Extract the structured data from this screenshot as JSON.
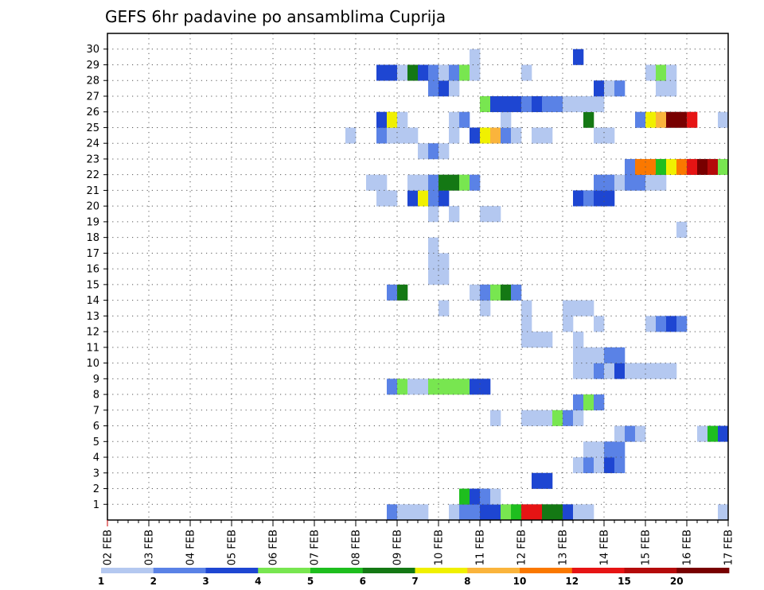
{
  "chart_data": {
    "type": "heatmap",
    "title": "GEFS 6hr padavine po ansamblima Cuprija",
    "xlabel": "",
    "ylabel": "",
    "x_ticks": [
      "02 FEB",
      "03 FEB",
      "04 FEB",
      "05 FEB",
      "06 FEB",
      "07 FEB",
      "08 FEB",
      "09 FEB",
      "10 FEB",
      "11 FEB",
      "12 FEB",
      "13 FEB",
      "14 FEB",
      "15 FEB",
      "16 FEB",
      "17 FEB"
    ],
    "y_ticks": [
      "1",
      "2",
      "3",
      "4",
      "5",
      "6",
      "7",
      "8",
      "9",
      "10",
      "11",
      "12",
      "13",
      "14",
      "15",
      "16",
      "17",
      "18",
      "19",
      "20",
      "21",
      "22",
      "23",
      "24",
      "25",
      "26",
      "27",
      "28",
      "29",
      "30"
    ],
    "xlim_days": [
      0,
      15
    ],
    "time_step_hours": 6,
    "members": 31,
    "grid": "dotted",
    "legend": {
      "placement": "bottom",
      "labels": [
        "1",
        "2",
        "3",
        "4",
        "5",
        "6",
        "7",
        "8",
        "10",
        "12",
        "15",
        "20"
      ],
      "colors": [
        "#b4c8f0",
        "#5a82e6",
        "#1e46d2",
        "#78e650",
        "#1ebe1e",
        "#147814",
        "#f0f000",
        "#fab43c",
        "#fa7800",
        "#e61414",
        "#b40a0a",
        "#780000"
      ]
    },
    "cells": [
      [
        0,
        27,
        2
      ],
      [
        0,
        28,
        1
      ],
      [
        0,
        29,
        1
      ],
      [
        0,
        30,
        1
      ],
      [
        0,
        33,
        1
      ],
      [
        0,
        34,
        2
      ],
      [
        0,
        35,
        2
      ],
      [
        0,
        36,
        3
      ],
      [
        0,
        37,
        3
      ],
      [
        0,
        38,
        4
      ],
      [
        0,
        39,
        5
      ],
      [
        0,
        40,
        10
      ],
      [
        0,
        41,
        10
      ],
      [
        0,
        42,
        6
      ],
      [
        0,
        43,
        6
      ],
      [
        0,
        44,
        3
      ],
      [
        0,
        45,
        1
      ],
      [
        0,
        46,
        1
      ],
      [
        0,
        59,
        1
      ],
      [
        1,
        34,
        5
      ],
      [
        1,
        35,
        3
      ],
      [
        1,
        36,
        2
      ],
      [
        1,
        37,
        1
      ],
      [
        2,
        41,
        3
      ],
      [
        2,
        42,
        3
      ],
      [
        3,
        45,
        1
      ],
      [
        3,
        46,
        2
      ],
      [
        3,
        47,
        1
      ],
      [
        3,
        48,
        3
      ],
      [
        3,
        49,
        2
      ],
      [
        4,
        46,
        1
      ],
      [
        4,
        47,
        1
      ],
      [
        4,
        48,
        2
      ],
      [
        4,
        49,
        2
      ],
      [
        5,
        49,
        1
      ],
      [
        5,
        50,
        2
      ],
      [
        5,
        51,
        1
      ],
      [
        5,
        57,
        1
      ],
      [
        5,
        58,
        5
      ],
      [
        5,
        59,
        3
      ],
      [
        6,
        37,
        1
      ],
      [
        6,
        40,
        1
      ],
      [
        6,
        41,
        1
      ],
      [
        6,
        42,
        1
      ],
      [
        6,
        43,
        4
      ],
      [
        6,
        44,
        2
      ],
      [
        6,
        45,
        1
      ],
      [
        7,
        45,
        2
      ],
      [
        7,
        46,
        4
      ],
      [
        7,
        47,
        2
      ],
      [
        8,
        27,
        2
      ],
      [
        8,
        28,
        4
      ],
      [
        8,
        29,
        1
      ],
      [
        8,
        30,
        1
      ],
      [
        8,
        31,
        4
      ],
      [
        8,
        32,
        4
      ],
      [
        8,
        33,
        4
      ],
      [
        8,
        34,
        4
      ],
      [
        8,
        35,
        3
      ],
      [
        8,
        36,
        3
      ],
      [
        9,
        45,
        1
      ],
      [
        9,
        46,
        1
      ],
      [
        9,
        47,
        2
      ],
      [
        9,
        48,
        1
      ],
      [
        9,
        49,
        3
      ],
      [
        9,
        50,
        1
      ],
      [
        9,
        51,
        1
      ],
      [
        9,
        52,
        1
      ],
      [
        9,
        53,
        1
      ],
      [
        9,
        54,
        1
      ],
      [
        10,
        45,
        1
      ],
      [
        10,
        46,
        1
      ],
      [
        10,
        47,
        1
      ],
      [
        10,
        48,
        2
      ],
      [
        10,
        49,
        2
      ],
      [
        11,
        40,
        1
      ],
      [
        11,
        41,
        1
      ],
      [
        11,
        42,
        1
      ],
      [
        11,
        45,
        1
      ],
      [
        12,
        40,
        1
      ],
      [
        12,
        44,
        1
      ],
      [
        12,
        47,
        1
      ],
      [
        12,
        52,
        1
      ],
      [
        12,
        53,
        2
      ],
      [
        12,
        54,
        3
      ],
      [
        12,
        55,
        2
      ],
      [
        13,
        32,
        1
      ],
      [
        13,
        36,
        1
      ],
      [
        13,
        40,
        1
      ],
      [
        13,
        44,
        1
      ],
      [
        13,
        45,
        1
      ],
      [
        13,
        46,
        1
      ],
      [
        14,
        27,
        2
      ],
      [
        14,
        28,
        6
      ],
      [
        14,
        35,
        1
      ],
      [
        14,
        36,
        2
      ],
      [
        14,
        37,
        4
      ],
      [
        14,
        38,
        6
      ],
      [
        14,
        39,
        2
      ],
      [
        15,
        31,
        1
      ],
      [
        15,
        32,
        1
      ],
      [
        16,
        32,
        1
      ],
      [
        16,
        31,
        1
      ],
      [
        17,
        31,
        1
      ],
      [
        18,
        55,
        1
      ],
      [
        19,
        31,
        1
      ],
      [
        19,
        33,
        1
      ],
      [
        19,
        36,
        1
      ],
      [
        19,
        37,
        1
      ],
      [
        20,
        26,
        1
      ],
      [
        20,
        27,
        1
      ],
      [
        20,
        29,
        3
      ],
      [
        20,
        30,
        7
      ],
      [
        20,
        31,
        2
      ],
      [
        20,
        32,
        3
      ],
      [
        20,
        45,
        3
      ],
      [
        20,
        46,
        2
      ],
      [
        20,
        47,
        3
      ],
      [
        20,
        48,
        3
      ],
      [
        21,
        25,
        1
      ],
      [
        21,
        26,
        1
      ],
      [
        21,
        29,
        1
      ],
      [
        21,
        30,
        1
      ],
      [
        21,
        31,
        2
      ],
      [
        21,
        32,
        6
      ],
      [
        21,
        33,
        6
      ],
      [
        21,
        34,
        4
      ],
      [
        21,
        35,
        2
      ],
      [
        21,
        47,
        2
      ],
      [
        21,
        48,
        2
      ],
      [
        21,
        49,
        1
      ],
      [
        21,
        50,
        2
      ],
      [
        21,
        51,
        2
      ],
      [
        21,
        52,
        1
      ],
      [
        21,
        53,
        1
      ],
      [
        22,
        50,
        2
      ],
      [
        22,
        51,
        9
      ],
      [
        22,
        52,
        9
      ],
      [
        22,
        53,
        5
      ],
      [
        22,
        54,
        7
      ],
      [
        22,
        55,
        9
      ],
      [
        22,
        56,
        10
      ],
      [
        22,
        57,
        12
      ],
      [
        22,
        58,
        11
      ],
      [
        22,
        59,
        4
      ],
      [
        23,
        30,
        1
      ],
      [
        23,
        31,
        2
      ],
      [
        23,
        32,
        1
      ],
      [
        24,
        23,
        1
      ],
      [
        24,
        26,
        2
      ],
      [
        24,
        27,
        1
      ],
      [
        24,
        28,
        1
      ],
      [
        24,
        29,
        1
      ],
      [
        24,
        33,
        1
      ],
      [
        24,
        35,
        3
      ],
      [
        24,
        36,
        7
      ],
      [
        24,
        37,
        8
      ],
      [
        24,
        38,
        2
      ],
      [
        24,
        39,
        1
      ],
      [
        24,
        41,
        1
      ],
      [
        24,
        42,
        1
      ],
      [
        24,
        47,
        1
      ],
      [
        24,
        48,
        1
      ],
      [
        25,
        26,
        3
      ],
      [
        25,
        27,
        7
      ],
      [
        25,
        28,
        1
      ],
      [
        25,
        33,
        1
      ],
      [
        25,
        34,
        2
      ],
      [
        25,
        38,
        1
      ],
      [
        25,
        46,
        6
      ],
      [
        25,
        51,
        2
      ],
      [
        25,
        52,
        7
      ],
      [
        25,
        53,
        8
      ],
      [
        25,
        54,
        12
      ],
      [
        25,
        55,
        12
      ],
      [
        25,
        56,
        10
      ],
      [
        25,
        59,
        1
      ],
      [
        26,
        36,
        4
      ],
      [
        26,
        37,
        3
      ],
      [
        26,
        38,
        3
      ],
      [
        26,
        39,
        3
      ],
      [
        26,
        40,
        2
      ],
      [
        26,
        41,
        3
      ],
      [
        26,
        42,
        2
      ],
      [
        26,
        43,
        2
      ],
      [
        26,
        44,
        1
      ],
      [
        26,
        45,
        1
      ],
      [
        26,
        46,
        1
      ],
      [
        26,
        47,
        1
      ],
      [
        27,
        31,
        2
      ],
      [
        27,
        32,
        3
      ],
      [
        27,
        33,
        1
      ],
      [
        27,
        47,
        3
      ],
      [
        27,
        48,
        1
      ],
      [
        27,
        49,
        2
      ],
      [
        27,
        53,
        1
      ],
      [
        27,
        54,
        1
      ],
      [
        28,
        26,
        3
      ],
      [
        28,
        27,
        3
      ],
      [
        28,
        28,
        1
      ],
      [
        28,
        29,
        6
      ],
      [
        28,
        30,
        3
      ],
      [
        28,
        31,
        2
      ],
      [
        28,
        32,
        1
      ],
      [
        28,
        33,
        2
      ],
      [
        28,
        34,
        4
      ],
      [
        28,
        35,
        1
      ],
      [
        28,
        40,
        1
      ],
      [
        28,
        52,
        1
      ],
      [
        28,
        53,
        4
      ],
      [
        28,
        54,
        1
      ],
      [
        29,
        35,
        1
      ],
      [
        29,
        45,
        3
      ]
    ]
  }
}
